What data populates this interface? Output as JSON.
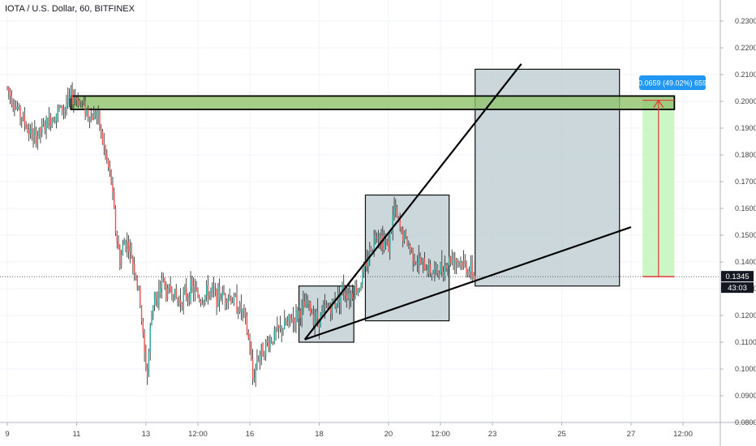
{
  "header": {
    "title": "IOTA / U.S. Dollar, 60, BITFINEX"
  },
  "colors": {
    "up": "#26a69a",
    "down": "#ef5350",
    "bar": "#222222",
    "zone_fill": "#8fc36b",
    "box_fill": "#b9c9cf",
    "projection_fill": "#c8f5c0",
    "arrow": "#e53935",
    "tooltip": "#2196f3",
    "last_price_tag": "#131722",
    "trendline": "#000000"
  },
  "chart_data": {
    "type": "candlestick",
    "title": "IOTA / U.S. Dollar, 60, BITFINEX",
    "y_axis": {
      "min": 0.08,
      "max": 0.235,
      "ticks": [
        "0.2300",
        "0.2200",
        "0.2100",
        "0.2000",
        "0.1900",
        "0.1800",
        "0.1700",
        "0.1600",
        "0.1500",
        "0.1400",
        "0.1300",
        "0.1200",
        "0.1100",
        "0.1000",
        "0.0900",
        "0.0800"
      ],
      "tick_values": [
        0.23,
        0.22,
        0.21,
        0.2,
        0.19,
        0.18,
        0.17,
        0.16,
        0.15,
        0.14,
        0.13,
        0.12,
        0.11,
        0.1,
        0.09,
        0.08
      ]
    },
    "x_axis": {
      "ticks": [
        "9",
        "11",
        "13",
        "12:00",
        "16",
        "18",
        "20",
        "12:00",
        "23",
        "25",
        "27",
        "12:00"
      ],
      "tick_hours": [
        0,
        48,
        96,
        132,
        168,
        216,
        264,
        300,
        336,
        384,
        432,
        468
      ]
    },
    "price_path": [
      [
        0,
        0.205
      ],
      [
        6,
        0.198
      ],
      [
        12,
        0.192
      ],
      [
        18,
        0.186
      ],
      [
        22,
        0.188
      ],
      [
        28,
        0.192
      ],
      [
        34,
        0.196
      ],
      [
        40,
        0.198
      ],
      [
        46,
        0.202
      ],
      [
        52,
        0.199
      ],
      [
        58,
        0.194
      ],
      [
        62,
        0.196
      ],
      [
        66,
        0.185
      ],
      [
        70,
        0.175
      ],
      [
        72,
        0.17
      ],
      [
        75,
        0.152
      ],
      [
        78,
        0.14
      ],
      [
        81,
        0.148
      ],
      [
        84,
        0.146
      ],
      [
        88,
        0.138
      ],
      [
        92,
        0.125
      ],
      [
        95,
        0.105
      ],
      [
        97,
        0.098
      ],
      [
        99,
        0.115
      ],
      [
        102,
        0.13
      ],
      [
        104,
        0.122
      ],
      [
        107,
        0.135
      ],
      [
        110,
        0.128
      ],
      [
        114,
        0.13
      ],
      [
        118,
        0.125
      ],
      [
        122,
        0.127
      ],
      [
        128,
        0.13
      ],
      [
        134,
        0.126
      ],
      [
        140,
        0.129
      ],
      [
        146,
        0.127
      ],
      [
        152,
        0.128
      ],
      [
        158,
        0.125
      ],
      [
        164,
        0.12
      ],
      [
        168,
        0.108
      ],
      [
        170,
        0.096
      ],
      [
        173,
        0.104
      ],
      [
        178,
        0.108
      ],
      [
        184,
        0.112
      ],
      [
        190,
        0.115
      ],
      [
        196,
        0.118
      ],
      [
        202,
        0.121
      ],
      [
        208,
        0.124
      ],
      [
        212,
        0.12
      ],
      [
        216,
        0.119
      ],
      [
        220,
        0.122
      ],
      [
        226,
        0.124
      ],
      [
        232,
        0.13
      ],
      [
        238,
        0.128
      ],
      [
        244,
        0.131
      ],
      [
        250,
        0.142
      ],
      [
        256,
        0.152
      ],
      [
        260,
        0.148
      ],
      [
        264,
        0.146
      ],
      [
        268,
        0.16
      ],
      [
        272,
        0.152
      ],
      [
        276,
        0.148
      ],
      [
        280,
        0.144
      ],
      [
        284,
        0.14
      ],
      [
        290,
        0.138
      ],
      [
        296,
        0.136
      ],
      [
        302,
        0.138
      ],
      [
        308,
        0.142
      ],
      [
        314,
        0.14
      ],
      [
        320,
        0.137
      ],
      [
        324,
        0.1345
      ]
    ],
    "last_price": {
      "value": 0.1345,
      "label": "0.1345",
      "countdown": "43:03"
    },
    "annotations": {
      "resistance_zone": {
        "from_hour": 44,
        "to_hour": 462,
        "price_low": 0.197,
        "price_high": 0.202
      },
      "boxes": [
        {
          "from_hour": 202,
          "to_hour": 240,
          "price_low": 0.11,
          "price_high": 0.131
        },
        {
          "from_hour": 248,
          "to_hour": 306,
          "price_low": 0.118,
          "price_high": 0.165
        },
        {
          "from_hour": 324,
          "to_hour": 424,
          "price_low": 0.131,
          "price_high": 0.212
        }
      ],
      "trendlines": [
        {
          "from": [
            206,
            0.111
          ],
          "to": [
            356,
            0.214
          ]
        },
        {
          "from": [
            206,
            0.111
          ],
          "to": [
            432,
            0.153
          ]
        }
      ],
      "projection": {
        "from_hour": 440,
        "to_hour": 462,
        "price_from": 0.1345,
        "price_to": 0.2004,
        "label": "0.0659 (49.02%) 659"
      }
    }
  }
}
